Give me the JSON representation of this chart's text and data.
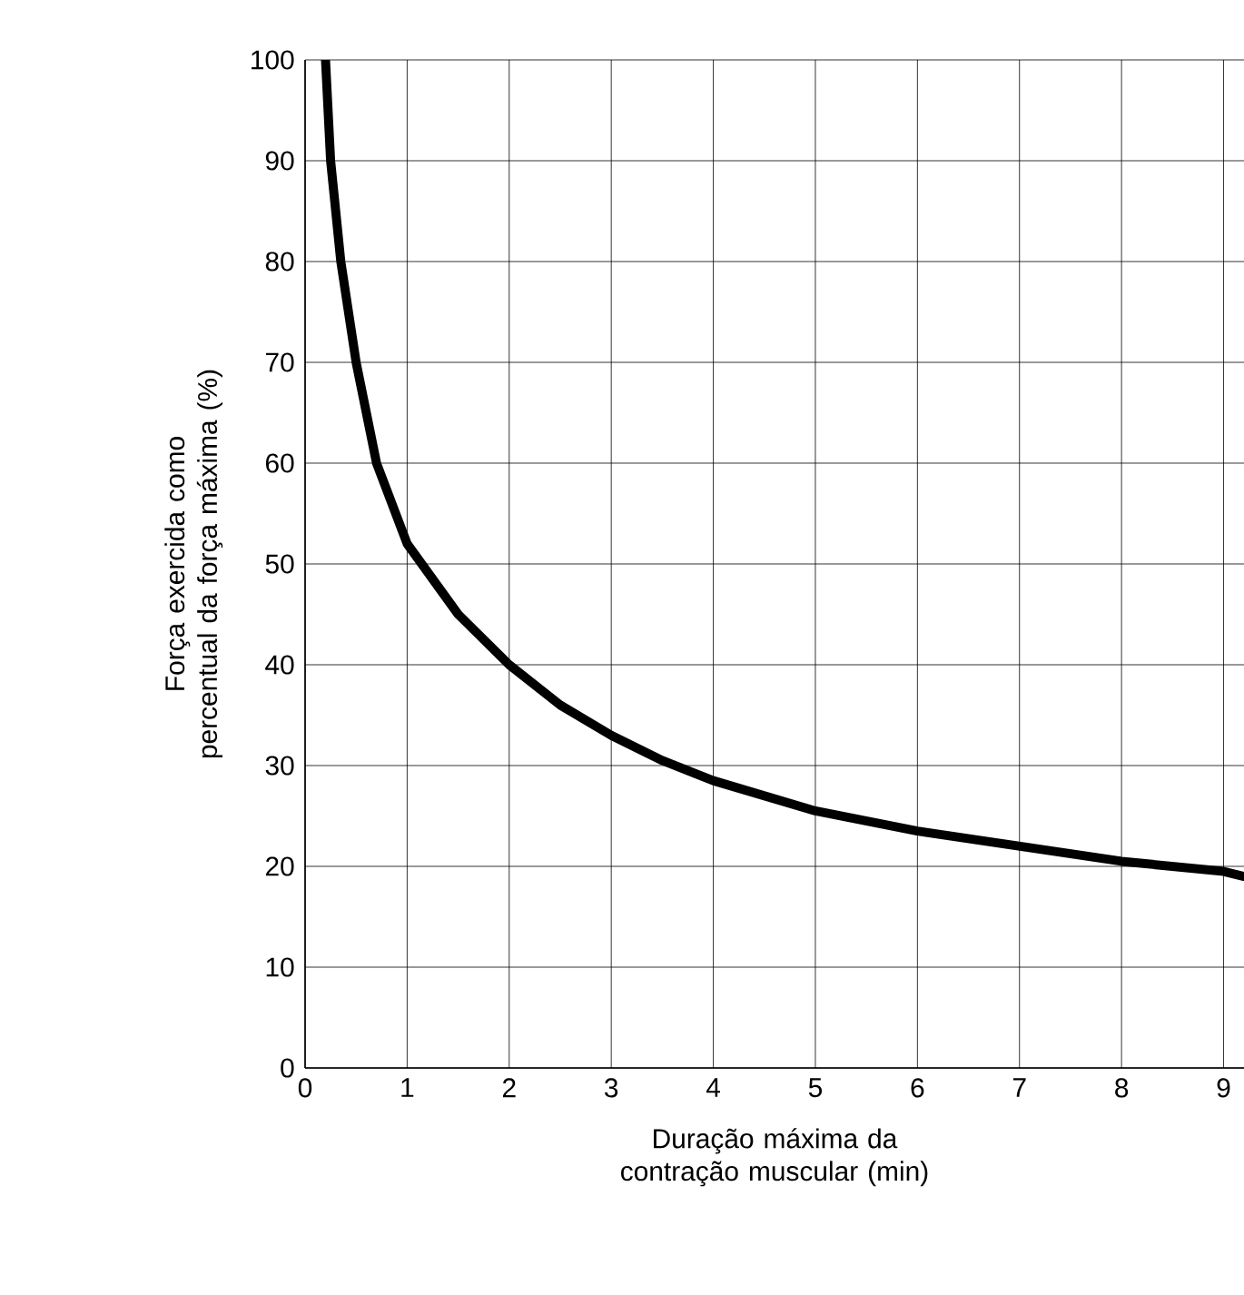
{
  "chart_data": {
    "type": "line",
    "xlabel": "Duração máxima da contração muscular (min)",
    "ylabel": "Força exercida como percentual da força máxima (%)",
    "series": [
      {
        "color": "#000000",
        "x": [
          0.2,
          0.25,
          0.35,
          0.5,
          0.7,
          1.0,
          1.5,
          2,
          2.5,
          3,
          3.5,
          4,
          5,
          6,
          7,
          8,
          9,
          9.2
        ],
        "values": [
          100,
          90,
          80,
          70,
          60,
          52,
          45,
          40,
          36,
          33,
          30.5,
          28.5,
          25.5,
          23.5,
          22,
          20.5,
          19.5,
          19
        ]
      }
    ],
    "xlim": [
      0,
      9.2
    ],
    "ylim": [
      0,
      100
    ],
    "xticks": [
      0,
      1,
      2,
      3,
      4,
      5,
      6,
      7,
      8,
      9
    ],
    "yticks": [
      0,
      10,
      20,
      30,
      40,
      50,
      60,
      70,
      80,
      90,
      100
    ],
    "grid": true,
    "line_style": "solid",
    "marker": "none"
  }
}
